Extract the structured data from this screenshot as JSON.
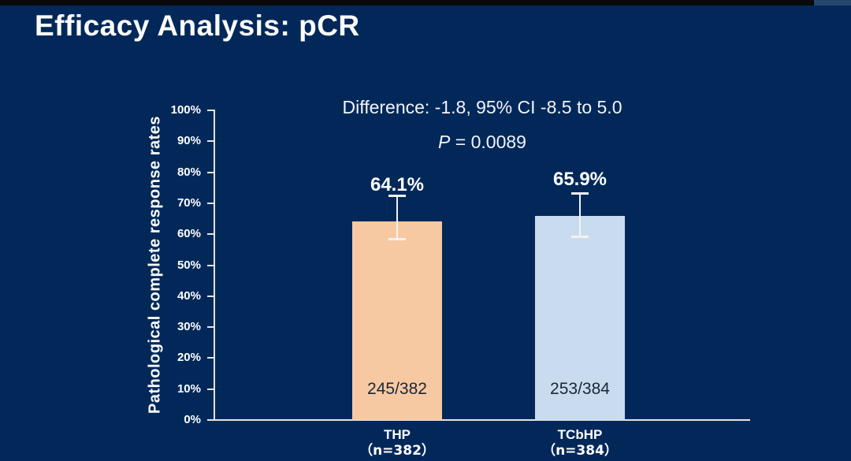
{
  "header": {
    "title": "Efficacy Analysis: pCR"
  },
  "chart_data": {
    "type": "bar",
    "annotation_difference": "Difference: -1.8, 95% CI -8.5 to 5.0",
    "p_label": "P",
    "p_value": " = 0.0089",
    "ylabel": "Pathological complete response rates",
    "ylim": [
      0,
      100
    ],
    "ytick_step": 10,
    "yticks": [
      "100%",
      "90%",
      "80%",
      "70%",
      "60%",
      "50%",
      "40%",
      "30%",
      "20%",
      "10%",
      "0%"
    ],
    "grid": false,
    "legend": "none",
    "categories": [
      {
        "name": "THP",
        "n_label": "（n=382）",
        "value": 64.1,
        "value_label": "64.1%",
        "count_label": "245/382",
        "ci_low": 58.5,
        "ci_high": 72.5,
        "color": "#F7C9A2"
      },
      {
        "name": "TCbHP",
        "n_label": "（n=384）",
        "value": 65.9,
        "value_label": "65.9%",
        "count_label": "253/384",
        "ci_low": 59.3,
        "ci_high": 73.3,
        "color": "#C9DCEF"
      }
    ],
    "colors": {
      "background": "#022859",
      "top_strip": "#0A0A0A",
      "top_strip_end": "#26466E",
      "axis": "#E3E3E3",
      "error_bar": "#F2F2F2",
      "text": "#FFFFFF",
      "bar_inner_text": "#1A2638"
    }
  }
}
